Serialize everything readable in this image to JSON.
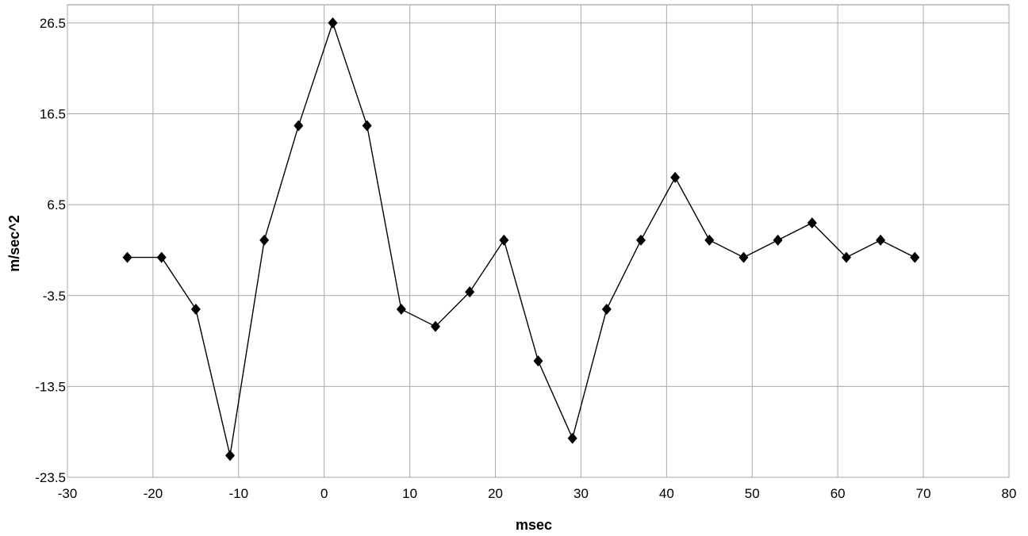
{
  "chart_data": {
    "type": "line",
    "title": "",
    "xlabel": "msec",
    "ylabel": "m/sec^2",
    "xlim": [
      -30,
      80
    ],
    "ylim": [
      -23.5,
      28.5
    ],
    "xticks": [
      -30,
      -20,
      -10,
      0,
      10,
      20,
      30,
      40,
      50,
      60,
      70,
      80
    ],
    "yticks": [
      -23.5,
      -13.5,
      -3.5,
      6.5,
      16.5,
      26.5
    ],
    "grid": true,
    "legend": "none",
    "series": [
      {
        "marker": "diamond",
        "color": "#000000",
        "x": [
          -23,
          -19,
          -15,
          -11,
          -7,
          -3,
          1,
          5,
          9,
          13,
          17,
          21,
          25,
          29,
          33,
          37,
          41,
          45,
          49,
          53,
          57,
          61,
          65,
          69
        ],
        "y": [
          0.7,
          0.7,
          -5.0,
          -21.1,
          2.6,
          15.2,
          26.5,
          15.2,
          -5.0,
          -6.9,
          -3.1,
          2.6,
          -10.7,
          -19.2,
          -5.0,
          2.6,
          9.5,
          2.6,
          0.7,
          2.6,
          4.5,
          0.7,
          2.6,
          0.7
        ]
      }
    ]
  }
}
